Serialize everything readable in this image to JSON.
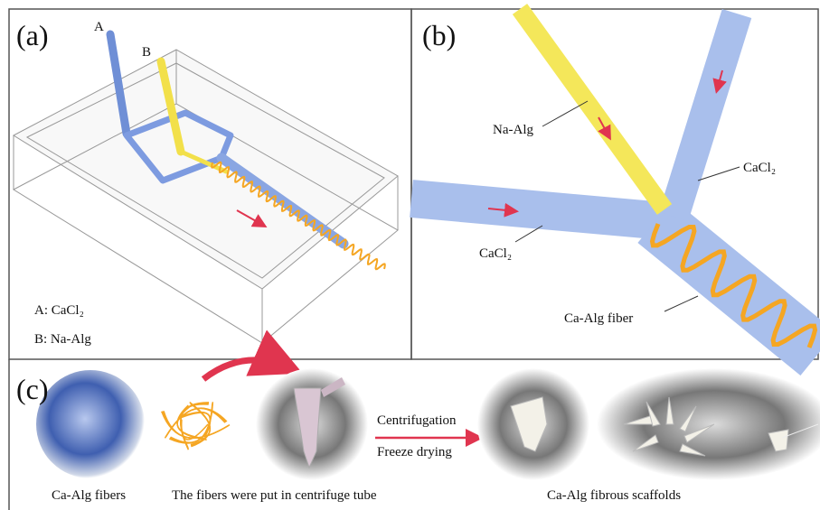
{
  "panel_a": {
    "label": "(a)",
    "inlet_a": "A",
    "inlet_b": "B",
    "legend_a": "A: CaCl₂",
    "legend_b": "B: Na-Alg"
  },
  "panel_b": {
    "label": "(b)",
    "yellow_channel": "Na-Alg",
    "right_channel": "CaCl₂",
    "left_channel": "CaCl₂",
    "fiber": "Ca-Alg fiber"
  },
  "panel_c": {
    "label": "(c)",
    "fibers_caption": "Ca-Alg fibers",
    "tube_caption": "The fibers were put in centrifuge tube",
    "step_1": "Centrifugation",
    "step_2": "Freeze drying",
    "scaffolds_caption": "Ca-Alg fibrous scaffolds"
  }
}
